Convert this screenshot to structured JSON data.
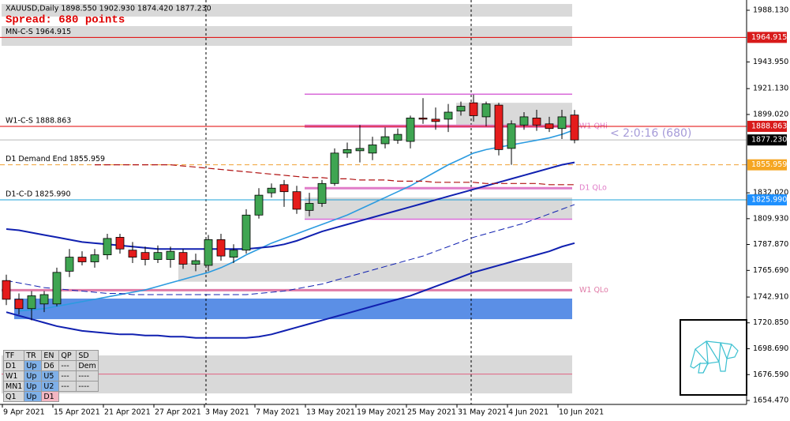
{
  "chart_data": {
    "type": "candlestick",
    "title": "XAUUSD,Daily  1898.550 1902.930 1874.420 1877.230",
    "spread": "Spread: 680 points",
    "countdown": "< 2:0:16 (680)",
    "up_color": "#3fa552",
    "down_color": "#e51c1c",
    "categories": [
      "9 Apr 2021",
      null,
      null,
      null,
      "15 Apr 2021",
      null,
      null,
      null,
      "21 Apr 2021",
      null,
      null,
      null,
      "27 Apr 2021",
      null,
      null,
      null,
      "3 May 2021",
      null,
      null,
      null,
      "7 May 2021",
      null,
      null,
      null,
      "13 May 2021",
      null,
      null,
      null,
      "19 May 2021",
      null,
      null,
      null,
      "25 May 2021",
      null,
      null,
      null,
      "31 May 2021",
      null,
      null,
      null,
      "4 Jun 2021",
      null,
      null,
      null,
      "10 Jun 2021",
      null
    ],
    "open": [
      1757,
      1741,
      1733,
      1737,
      1737,
      1765,
      1777,
      1773,
      1779,
      1794,
      1783,
      1781,
      1775,
      1775,
      1781,
      1771,
      1770,
      1792,
      1777,
      1783,
      1813,
      1832,
      1839,
      1833,
      1817,
      1823,
      1840,
      1866,
      1868,
      1866,
      1874,
      1877,
      1876,
      1896,
      1895,
      1895,
      1902,
      1909,
      1897,
      1907,
      1870,
      1890,
      1896,
      1891,
      1887,
      1898.55
    ],
    "high": [
      1762,
      1746,
      1748,
      1748,
      1768,
      1784,
      1782,
      1784,
      1797,
      1797,
      1790,
      1786,
      1787,
      1786,
      1784,
      1780,
      1796,
      1797,
      1788,
      1818,
      1836,
      1840,
      1843,
      1838,
      1832,
      1843,
      1870,
      1875,
      1890,
      1880,
      1888,
      1887,
      1898,
      1913,
      1905,
      1908,
      1910,
      1916,
      1910,
      1909,
      1894,
      1901,
      1903,
      1897,
      1903,
      1902.93
    ],
    "low": [
      1736,
      1728,
      1723,
      1730,
      1735,
      1760,
      1770,
      1768,
      1775,
      1780,
      1772,
      1770,
      1772,
      1768,
      1767,
      1765,
      1765,
      1774,
      1772,
      1780,
      1810,
      1828,
      1820,
      1814,
      1812,
      1820,
      1838,
      1862,
      1858,
      1860,
      1870,
      1874,
      1870,
      1891,
      1886,
      1884,
      1898,
      1893,
      1889,
      1864,
      1856,
      1886,
      1885,
      1884,
      1878,
      1874.42
    ],
    "close": [
      1741,
      1733,
      1744,
      1745,
      1764,
      1777,
      1773,
      1779,
      1793,
      1784,
      1777,
      1775,
      1781,
      1782,
      1771,
      1774,
      1792,
      1778,
      1783,
      1813,
      1830,
      1836,
      1833,
      1818,
      1823,
      1840,
      1866,
      1869,
      1870,
      1873,
      1880,
      1882,
      1896,
      1895,
      1893,
      1901,
      1906,
      1898,
      1908,
      1869,
      1891,
      1897,
      1890,
      1887,
      1897,
      1877.23
    ],
    "indicators": [
      {
        "color": "#2b9be0",
        "width": 1.6,
        "dash": false,
        "values": [
          null,
          1731,
          1732,
          1733,
          1735,
          1737,
          1739,
          1741,
          1743,
          1745,
          1747,
          1749,
          1752,
          1755,
          1758,
          1761,
          1764,
          1768,
          1773,
          1779,
          1784,
          1789,
          1793,
          1797,
          1801,
          1805,
          1809,
          1813,
          1818,
          1823,
          1828,
          1833,
          1838,
          1844,
          1850,
          1856,
          1861,
          1866,
          1869,
          1871,
          1873,
          1875,
          1877,
          1879,
          1882,
          1886
        ]
      },
      {
        "color": "#1020b0",
        "width": 2,
        "dash": false,
        "values": [
          1801,
          1800,
          1798,
          1796,
          1794,
          1792,
          1790,
          1789,
          1788,
          1787,
          1786,
          1785,
          1784,
          1784,
          1784,
          1784,
          1784,
          1784,
          1784,
          1784,
          1785,
          1786,
          1788,
          1791,
          1795,
          1799,
          1802,
          1805,
          1808,
          1811,
          1814,
          1817,
          1820,
          1823,
          1826,
          1829,
          1832,
          1835,
          1838,
          1841,
          1844,
          1847,
          1850,
          1853,
          1856,
          1858
        ]
      },
      {
        "color": "#1020b0",
        "width": 1,
        "dash": true,
        "values": [
          1757,
          1755,
          1753,
          1751,
          1750,
          1749,
          1748,
          1747,
          1746,
          1746,
          1745,
          1745,
          1745,
          1745,
          1745,
          1745,
          1745,
          1745,
          1745,
          1745,
          1746,
          1747,
          1748,
          1750,
          1752,
          1754,
          1757,
          1760,
          1763,
          1766,
          1769,
          1772,
          1775,
          1778,
          1782,
          1786,
          1790,
          1794,
          1797,
          1800,
          1803,
          1806,
          1810,
          1814,
          1818,
          1822
        ]
      },
      {
        "color": "#1020b0",
        "width": 2,
        "dash": false,
        "values": [
          1730,
          1727,
          1724,
          1721,
          1718,
          1716,
          1714,
          1713,
          1712,
          1711,
          1711,
          1710,
          1710,
          1709,
          1709,
          1708,
          1708,
          1708,
          1708,
          1708,
          1709,
          1711,
          1714,
          1717,
          1720,
          1723,
          1726,
          1729,
          1732,
          1735,
          1738,
          1741,
          1744,
          1748,
          1752,
          1756,
          1760,
          1764,
          1767,
          1770,
          1773,
          1776,
          1779,
          1782,
          1786,
          1789
        ]
      },
      {
        "color": "#b01010",
        "width": 1.2,
        "dash": true,
        "values": [
          null,
          null,
          null,
          null,
          null,
          null,
          null,
          1856,
          1856,
          1856,
          1856,
          1856,
          1856,
          1856,
          1855,
          1854,
          1853,
          1852,
          1851,
          1850,
          1849,
          1848,
          1847,
          1846,
          1845,
          1845,
          1844,
          1844,
          1843,
          1843,
          1843,
          1842,
          1842,
          1842,
          1841,
          1841,
          1841,
          1841,
          1840,
          1840,
          1840,
          1840,
          1840,
          1839,
          1839,
          1839
        ]
      }
    ],
    "zones": [
      {
        "low": 1982.7,
        "high": 1993.5,
        "start": 0,
        "color": "#d9d9d9"
      },
      {
        "low": 1957.7,
        "high": 1974.6,
        "start": 0,
        "color": "#d9d9d9"
      },
      {
        "low": 1889,
        "high": 1909,
        "start": 36,
        "color": "#d9d9d9"
      },
      {
        "low": 1810,
        "high": 1828,
        "start": 24,
        "color": "#d9d9d9"
      },
      {
        "low": 1756,
        "high": 1772,
        "start": 14,
        "color": "#d9d9d9"
      },
      {
        "low": 1724,
        "high": 1741.6,
        "start": 1,
        "color": "#5b8fe6"
      },
      {
        "low": 1660.5,
        "high": 1693,
        "start": 0,
        "color": "#d9d9d9"
      }
    ],
    "bands": [
      {
        "value": 1916.4,
        "start": 24,
        "width": 1.5,
        "color": "#d86ad8"
      },
      {
        "value": 1889,
        "start": 24,
        "width": 4,
        "color": "#e07cc8",
        "label": "W1 QHi"
      },
      {
        "value": 1836,
        "start": 24,
        "width": 3,
        "color": "#e07cc8",
        "label": "D1 QLo"
      },
      {
        "value": 1809.5,
        "start": 24,
        "width": 1.5,
        "color": "#d86ad8"
      },
      {
        "value": 1748.8,
        "start": 0,
        "width": 3,
        "color": "#e07ca8",
        "label": "W1 QLo"
      },
      {
        "value": 1677,
        "start": 0,
        "width": 1,
        "color": "#e06080"
      }
    ],
    "levels": [
      {
        "value": 1964.915,
        "tag": "1964.915",
        "text": "MN-C-S 1964.915",
        "color": "#e00000",
        "tag_color": "#d81b1b",
        "dash": false
      },
      {
        "value": 1888.863,
        "tag": "1888.863",
        "text": "W1-C-S 1888.863",
        "color": "#e00000",
        "tag_color": "#d81b1b",
        "dash": false
      },
      {
        "value": 1877.23,
        "tag": "1877.230",
        "color": "#b8b8b8",
        "tag_color": "#000000",
        "dash": false
      },
      {
        "value": 1855.959,
        "tag": "1855.959",
        "text": "D1 Demand End 1855.959",
        "color": "#f0a030",
        "tag_color": "#f5a623",
        "dash": true
      },
      {
        "value": 1825.99,
        "tag": "1825.990",
        "text": "D1-C-D 1825.990",
        "color": "#1ea0d8",
        "tag_color": "#1e90ff",
        "dash": false
      }
    ],
    "ylim": [
      1651.1,
      1996.9
    ],
    "yticks": [
      {
        "value": 1988.13,
        "label": "1988.130"
      },
      {
        "value": 1943.95,
        "label": "1943.950"
      },
      {
        "value": 1921.13,
        "label": "1921.130"
      },
      {
        "value": 1899.02,
        "label": "1899.020"
      },
      {
        "value": 1832.02,
        "label": "1832.020"
      },
      {
        "value": 1809.93,
        "label": "1809.930"
      },
      {
        "value": 1787.87,
        "label": "1787.870"
      },
      {
        "value": 1765.69,
        "label": "1765.690"
      },
      {
        "value": 1742.91,
        "label": "1742.910"
      },
      {
        "value": 1720.85,
        "label": "1720.850"
      },
      {
        "value": 1698.69,
        "label": "1698.690"
      },
      {
        "value": 1676.59,
        "label": "1676.590"
      },
      {
        "value": 1654.47,
        "label": "1654.470"
      }
    ],
    "table": {
      "header": [
        "TF",
        "TR",
        "EN",
        "QP",
        "SD"
      ],
      "rows": [
        [
          "D1",
          "Up",
          "D6",
          "---",
          "Dem"
        ],
        [
          "W1",
          "Up",
          "U5",
          "---",
          "----"
        ],
        [
          "MN1",
          "Up",
          "U2",
          "---",
          "----"
        ],
        [
          "Q1",
          "Up",
          "D1"
        ]
      ]
    }
  }
}
